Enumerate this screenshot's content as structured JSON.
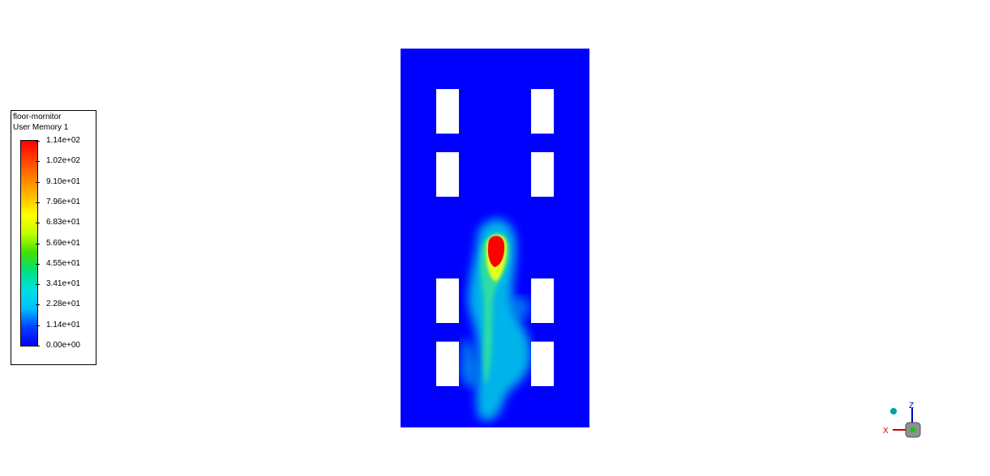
{
  "legend": {
    "title": "floor-mornitor",
    "subtitle": "User Memory 1",
    "labels": [
      "1.14e+02",
      "1.02e+02",
      "9.10e+01",
      "7.96e+01",
      "6.83e+01",
      "5.69e+01",
      "4.55e+01",
      "3.41e+01",
      "2.28e+01",
      "1.14e+01",
      "0.00e+00"
    ],
    "colormap": [
      "#ff0000",
      "#ff4000",
      "#ff8000",
      "#ffbf00",
      "#ffff00",
      "#bfff00",
      "#40e000",
      "#00e080",
      "#00e0e0",
      "#00c0ff",
      "#0040ff",
      "#0000ff"
    ]
  },
  "viewport": {
    "background_color": "#0000ff",
    "plume_colors": {
      "low": "#00d8e8",
      "mid": "#30e890",
      "high_yellow": "#e8ff00",
      "peak": "#ff0000"
    }
  },
  "triad": {
    "axis_z": "Z",
    "axis_x": "X",
    "z_color": "#0000c0",
    "x_color": "#d00000"
  }
}
